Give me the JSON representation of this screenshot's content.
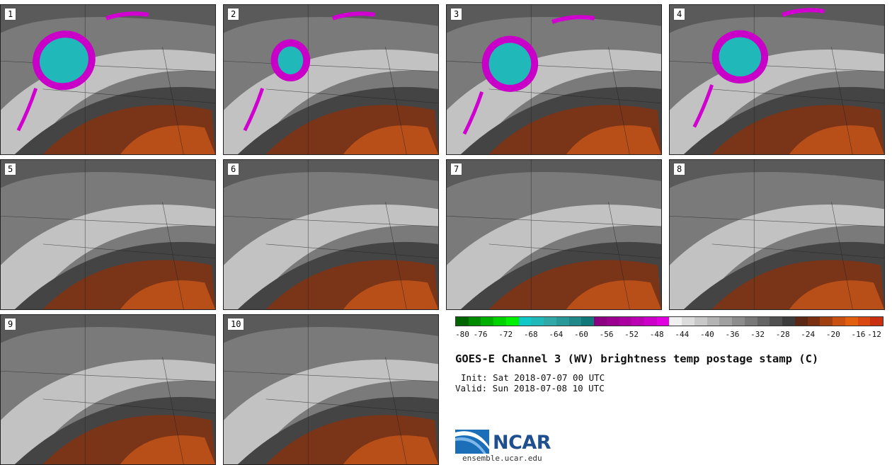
{
  "panels": [
    {
      "label": "1"
    },
    {
      "label": "2"
    },
    {
      "label": "3"
    },
    {
      "label": "4"
    },
    {
      "label": "5"
    },
    {
      "label": "6"
    },
    {
      "label": "7"
    },
    {
      "label": "8"
    },
    {
      "label": "9"
    },
    {
      "label": "10"
    }
  ],
  "colorbar": {
    "colors": [
      "#006400",
      "#008a00",
      "#00b000",
      "#00d200",
      "#00f000",
      "#10c8c8",
      "#20b8b8",
      "#30a8a8",
      "#289898",
      "#208888",
      "#107878",
      "#8a0080",
      "#9a0090",
      "#aa00a0",
      "#bb00b4",
      "#cc00c8",
      "#e000e0",
      "#f0f0f0",
      "#dcdcdc",
      "#c8c8c8",
      "#b4b4b4",
      "#a0a0a0",
      "#8c8c8c",
      "#787878",
      "#646464",
      "#505050",
      "#3c3c3c",
      "#5a2814",
      "#7a3010",
      "#a04010",
      "#c85010",
      "#e06010",
      "#d84810",
      "#c83010"
    ],
    "ticks": [
      "-80",
      "-76",
      "-72",
      "-68",
      "-64",
      "-60",
      "-56",
      "-52",
      "-48",
      "-44",
      "-40",
      "-36",
      "-32",
      "-28",
      "-24",
      "-20",
      "-16",
      "-12"
    ]
  },
  "title": "GOES-E Channel 3 (WV) brightness temp postage stamp (C)",
  "init": "Init: Sat 2018-07-07 00 UTC",
  "valid": "Valid: Sun 2018-07-08 10 UTC",
  "logo": {
    "text": "NCAR",
    "site": "ensemble.ucar.edu",
    "color": "#1f4f8f"
  }
}
